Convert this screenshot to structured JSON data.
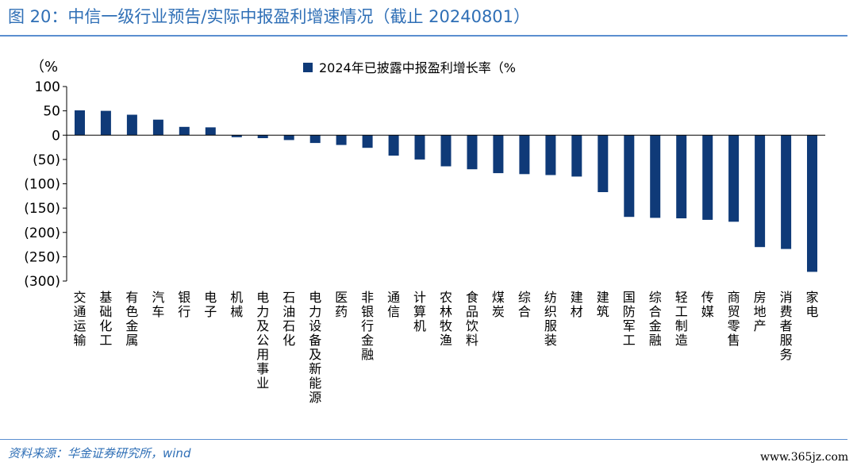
{
  "title": "图 20：中信一级行业预告/实际中报盈利增速情况（截止 20240801）",
  "source": "资料来源：华金证券研究所，wind",
  "watermark": "www.365jz.com",
  "colors": {
    "bar": "#0f3a78",
    "accent": "#2f6fb6",
    "rule": "#5b8fd0"
  },
  "chart_data": {
    "type": "bar",
    "title": "",
    "ylabel": "（%",
    "xlabel": "",
    "ylim": [
      -300,
      100
    ],
    "yticks": [
      100,
      50,
      0,
      -50,
      -100,
      -150,
      -200,
      -250,
      -300
    ],
    "ytick_labels": [
      "100",
      "50",
      "0",
      "(50)",
      "(100)",
      "(150)",
      "(200)",
      "(250)",
      "(300)"
    ],
    "legend": [
      "2024年已披露中报盈利增长率（%"
    ],
    "legend_position": "top-right",
    "grid": false,
    "categories": [
      "交通运输",
      "基础化工",
      "有色金属",
      "汽车",
      "银行",
      "电子",
      "机械",
      "电力及公用事业",
      "石油石化",
      "电力设备及新能源",
      "医药",
      "非银行金融",
      "通信",
      "计算机",
      "农林牧渔",
      "食品饮料",
      "煤炭",
      "综合",
      "纺织服装",
      "建材",
      "建筑",
      "国防军工",
      "综合金融",
      "轻工制造",
      "传媒",
      "商贸零售",
      "房地产",
      "消费者服务",
      "家电"
    ],
    "series": [
      {
        "name": "2024年已披露中报盈利增长率（%",
        "values": [
          51,
          50,
          42,
          32,
          17,
          16,
          -4,
          -6,
          -10,
          -16,
          -20,
          -26,
          -42,
          -50,
          -64,
          -70,
          -78,
          -80,
          -82,
          -85,
          -117,
          -168,
          -170,
          -171,
          -174,
          -178,
          -230,
          -234,
          -281
        ]
      }
    ]
  }
}
